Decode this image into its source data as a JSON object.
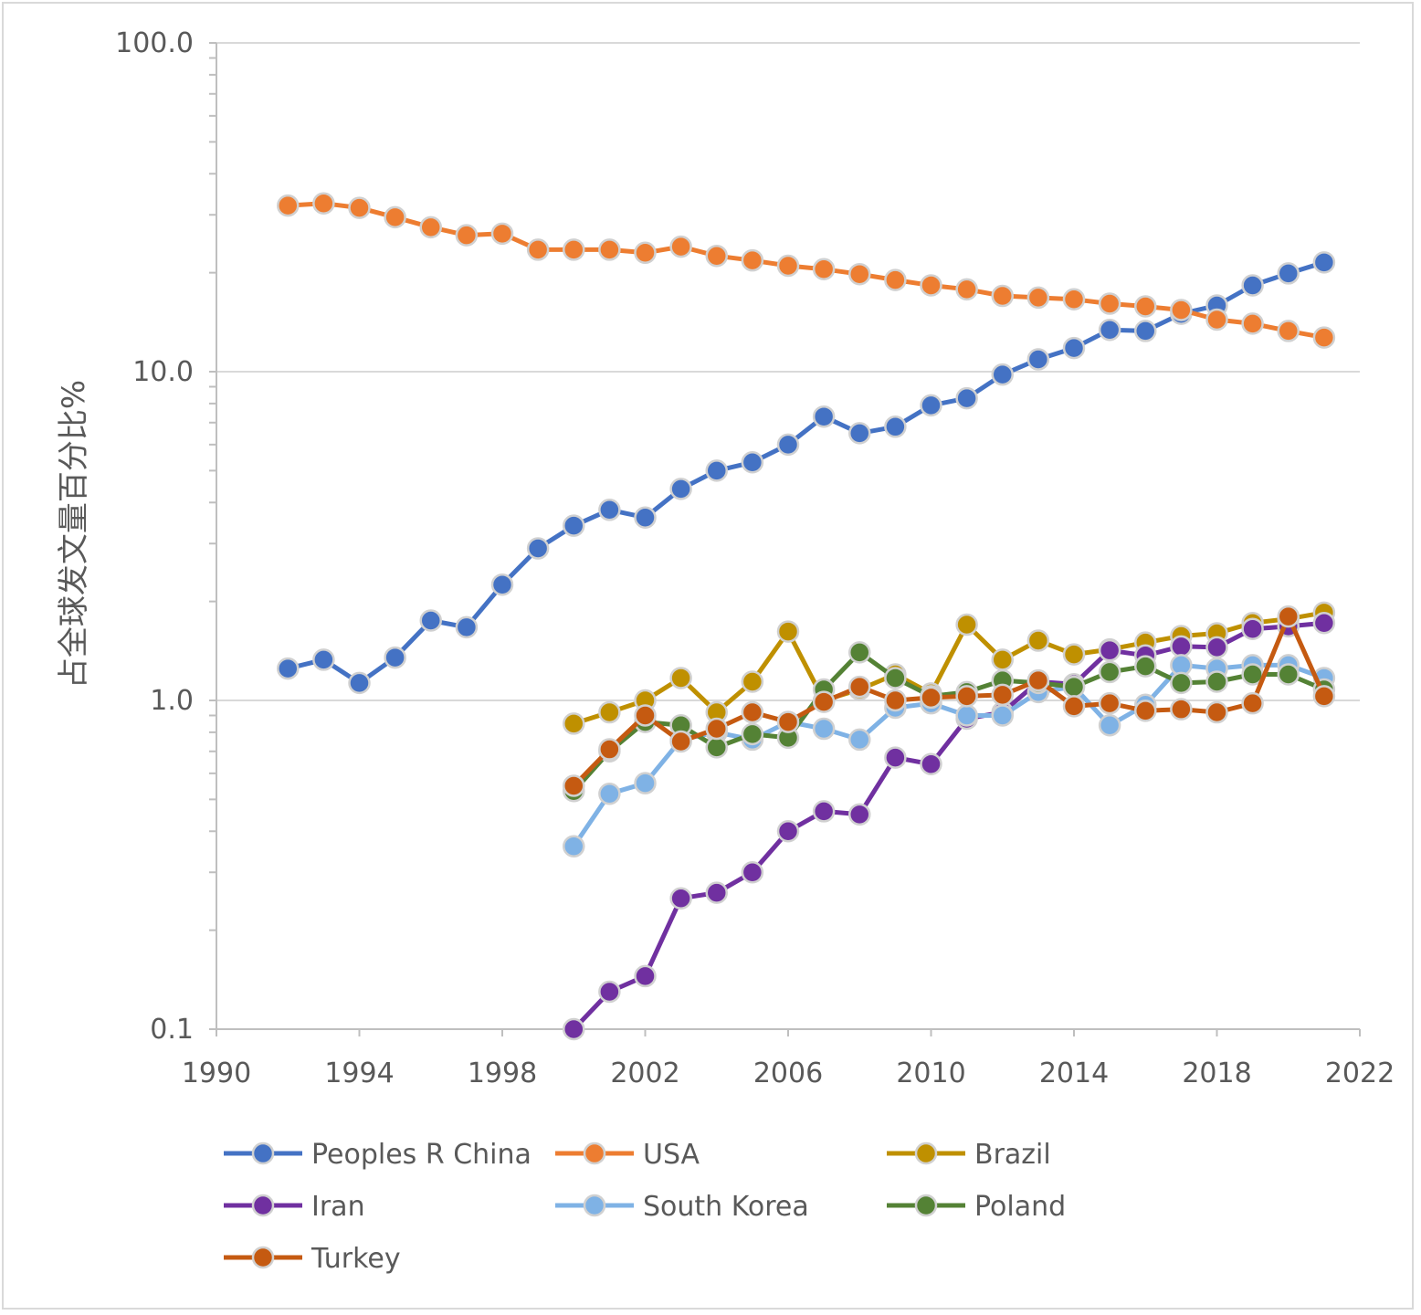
{
  "chart_data": {
    "type": "line",
    "title": "",
    "xlabel": "",
    "ylabel": "占全球发文量百分比%",
    "yscale": "log",
    "xlim": [
      1990,
      2022
    ],
    "ylim": [
      0.1,
      100
    ],
    "xticks": [
      "1990",
      "1994",
      "1998",
      "2002",
      "2006",
      "2010",
      "2014",
      "2018",
      "2022"
    ],
    "yticks": [
      "100.0",
      "10.0",
      "1.0",
      "0.1"
    ],
    "grid": true,
    "legend_position": "bottom",
    "series": [
      {
        "name": "Peoples R China",
        "color": "#4472c4",
        "x": [
          1992,
          1993,
          1994,
          1995,
          1996,
          1997,
          1998,
          1999,
          2000,
          2001,
          2002,
          2003,
          2004,
          2005,
          2006,
          2007,
          2008,
          2009,
          2010,
          2011,
          2012,
          2013,
          2014,
          2015,
          2016,
          2017,
          2018,
          2019,
          2020,
          2021
        ],
        "values": [
          1.25,
          1.33,
          1.13,
          1.35,
          1.75,
          1.67,
          2.25,
          2.9,
          3.4,
          3.8,
          3.6,
          4.4,
          5.0,
          5.3,
          6.0,
          7.3,
          6.5,
          6.8,
          7.9,
          8.3,
          9.8,
          10.9,
          11.8,
          13.4,
          13.3,
          15.0,
          15.9,
          18.3,
          19.9,
          21.5
        ]
      },
      {
        "name": "USA",
        "color": "#ed7d31",
        "x": [
          1992,
          1993,
          1994,
          1995,
          1996,
          1997,
          1998,
          1999,
          2000,
          2001,
          2002,
          2003,
          2004,
          2005,
          2006,
          2007,
          2008,
          2009,
          2010,
          2011,
          2012,
          2013,
          2014,
          2015,
          2016,
          2017,
          2018,
          2019,
          2020,
          2021
        ],
        "values": [
          32.0,
          32.5,
          31.5,
          29.5,
          27.5,
          26.0,
          26.3,
          23.5,
          23.5,
          23.5,
          23.0,
          24.0,
          22.5,
          21.8,
          21.0,
          20.5,
          19.8,
          19.0,
          18.3,
          17.8,
          17.0,
          16.8,
          16.6,
          16.1,
          15.8,
          15.4,
          14.4,
          14.0,
          13.3,
          12.7
        ]
      },
      {
        "name": "Brazil",
        "color": "#bf9000",
        "x": [
          2000,
          2001,
          2002,
          2003,
          2004,
          2005,
          2006,
          2007,
          2008,
          2009,
          2010,
          2011,
          2012,
          2013,
          2014,
          2015,
          2016,
          2017,
          2018,
          2019,
          2020,
          2021
        ],
        "values": [
          0.85,
          0.92,
          1.0,
          1.17,
          0.92,
          1.14,
          1.62,
          1.0,
          1.08,
          1.2,
          1.05,
          1.7,
          1.33,
          1.52,
          1.38,
          1.43,
          1.5,
          1.57,
          1.6,
          1.72,
          1.77,
          1.85
        ]
      },
      {
        "name": "Iran",
        "color": "#7030a0",
        "x": [
          2000,
          2001,
          2002,
          2003,
          2004,
          2005,
          2006,
          2007,
          2008,
          2009,
          2010,
          2011,
          2012,
          2013,
          2014,
          2015,
          2016,
          2017,
          2018,
          2019,
          2020,
          2021
        ],
        "values": [
          0.1,
          0.13,
          0.145,
          0.25,
          0.26,
          0.3,
          0.4,
          0.46,
          0.45,
          0.67,
          0.64,
          0.88,
          0.92,
          1.14,
          1.12,
          1.42,
          1.37,
          1.46,
          1.45,
          1.65,
          1.68,
          1.72
        ]
      },
      {
        "name": "South Korea",
        "color": "#7fb2e5",
        "x": [
          2000,
          2001,
          2002,
          2003,
          2004,
          2005,
          2006,
          2007,
          2008,
          2009,
          2010,
          2011,
          2012,
          2013,
          2014,
          2015,
          2016,
          2017,
          2018,
          2019,
          2020,
          2021
        ],
        "values": [
          0.36,
          0.52,
          0.56,
          0.76,
          0.8,
          0.76,
          0.86,
          0.82,
          0.76,
          0.95,
          0.98,
          0.9,
          0.9,
          1.06,
          1.1,
          0.84,
          0.97,
          1.28,
          1.25,
          1.28,
          1.28,
          1.17
        ]
      },
      {
        "name": "Poland",
        "color": "#548235",
        "x": [
          2000,
          2001,
          2002,
          2003,
          2004,
          2005,
          2006,
          2007,
          2008,
          2009,
          2010,
          2011,
          2012,
          2013,
          2014,
          2015,
          2016,
          2017,
          2018,
          2019,
          2020,
          2021
        ],
        "values": [
          0.53,
          0.7,
          0.86,
          0.84,
          0.72,
          0.79,
          0.77,
          1.08,
          1.4,
          1.17,
          1.03,
          1.06,
          1.15,
          1.13,
          1.1,
          1.22,
          1.27,
          1.13,
          1.14,
          1.2,
          1.2,
          1.08
        ]
      },
      {
        "name": "Turkey",
        "color": "#c55a11",
        "x": [
          2000,
          2001,
          2002,
          2003,
          2004,
          2005,
          2006,
          2007,
          2008,
          2009,
          2010,
          2011,
          2012,
          2013,
          2014,
          2015,
          2016,
          2017,
          2018,
          2019,
          2020,
          2021
        ],
        "values": [
          0.55,
          0.71,
          0.9,
          0.75,
          0.82,
          0.92,
          0.86,
          0.99,
          1.1,
          1.0,
          1.02,
          1.03,
          1.04,
          1.15,
          0.96,
          0.98,
          0.93,
          0.94,
          0.92,
          0.98,
          1.8,
          1.03
        ]
      }
    ]
  }
}
